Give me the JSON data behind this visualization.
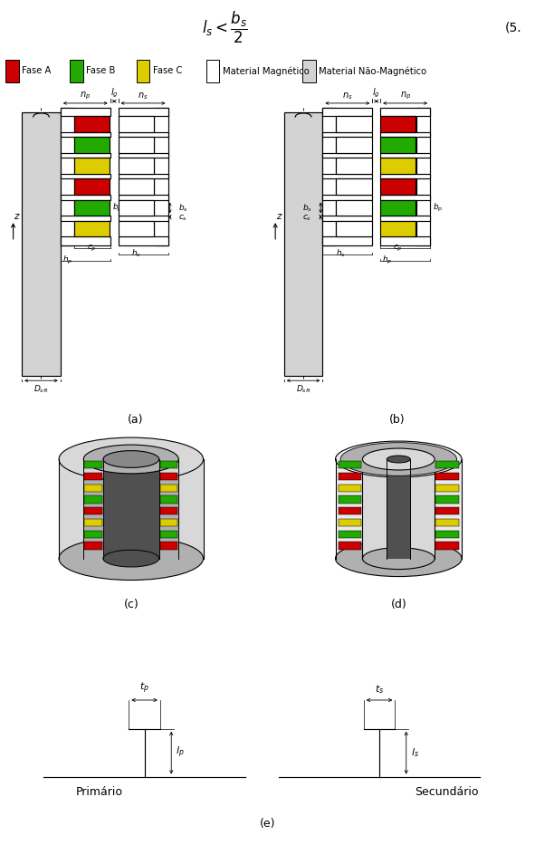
{
  "formula_text": "$l_s < \\dfrac{b_s}{2}$",
  "eq_num": "(5.",
  "legend_items": [
    {
      "label": "Fase A",
      "color": "#cc0000"
    },
    {
      "label": "Fase B",
      "color": "#22aa00"
    },
    {
      "label": "Fase C",
      "color": "#ddcc00"
    },
    {
      "label": "Material Magnético",
      "color": "#ffffff"
    },
    {
      "label": "Material Não-Magnético",
      "color": "#d3d3d3"
    }
  ],
  "phase_colors": [
    "#cc0000",
    "#22aa00",
    "#ddcc00"
  ],
  "shaft_color": "#d3d3d3",
  "mag_color": "#ffffff",
  "bg_color": "#ffffff",
  "lw": 0.85,
  "subfig_labels": [
    "(a)",
    "(b)",
    "(c)",
    "(d)",
    "(e)"
  ]
}
